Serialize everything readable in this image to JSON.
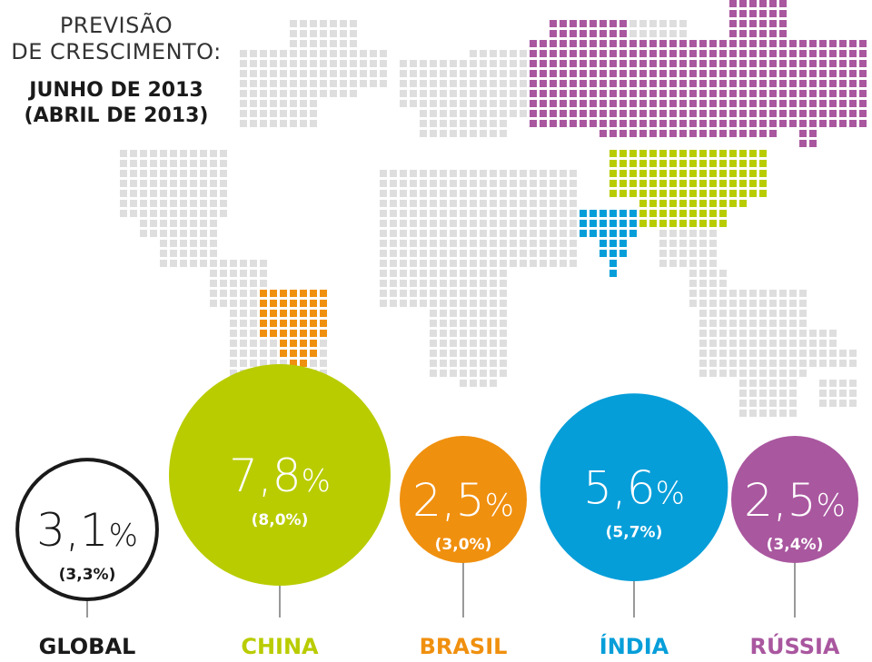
{
  "header": {
    "title_line1": "PREVISÃO",
    "title_line2": "DE CRESCIMENTO:",
    "date_line1": "JUNHO DE 2013",
    "date_line2": "(ABRIL DE 2013)"
  },
  "chart_data": {
    "type": "bubble",
    "unit": "%",
    "categories": [
      "GLOBAL",
      "CHINA",
      "BRASIL",
      "ÍNDIA",
      "RÚSSIA"
    ],
    "series": [
      {
        "name": "JUNHO DE 2013",
        "values": [
          3.1,
          7.8,
          2.5,
          5.6,
          2.5
        ]
      },
      {
        "name": "(ABRIL DE 2013)",
        "values": [
          3.3,
          8.0,
          3.0,
          5.7,
          3.4
        ]
      }
    ],
    "items": [
      {
        "label": "GLOBAL",
        "value": "3,1",
        "unit": "%",
        "previous": "(3,3%)",
        "color": "#ffffff",
        "stroke": "#1a1a1a",
        "value_color": "#1a1a1a",
        "label_color": "#1a1a1a"
      },
      {
        "label": "CHINA",
        "value": "7,8",
        "unit": "%",
        "previous": "(8,0%)",
        "color": "#b9cc00",
        "stroke": "none",
        "value_color": "#ffffff",
        "label_color": "#b9cc00"
      },
      {
        "label": "BRASIL",
        "value": "2,5",
        "unit": "%",
        "previous": "(3,0%)",
        "color": "#f0900f",
        "stroke": "none",
        "value_color": "#ffffff",
        "label_color": "#f0900f"
      },
      {
        "label": "ÍNDIA",
        "value": "5,6",
        "unit": "%",
        "previous": "(5,7%)",
        "color": "#069ed9",
        "stroke": "none",
        "value_color": "#ffffff",
        "label_color": "#069ed9"
      },
      {
        "label": "RÚSSIA",
        "value": "2,5",
        "unit": "%",
        "previous": "(3,4%)",
        "color": "#a9579f",
        "stroke": "none",
        "value_color": "#ffffff",
        "label_color": "#a9579f"
      }
    ]
  },
  "map": {
    "base_color": "#dedede",
    "region_colors": {
      "russia": "#a9579f",
      "china": "#b9cc00",
      "india": "#069ed9",
      "brasil": "#f0900f"
    }
  }
}
